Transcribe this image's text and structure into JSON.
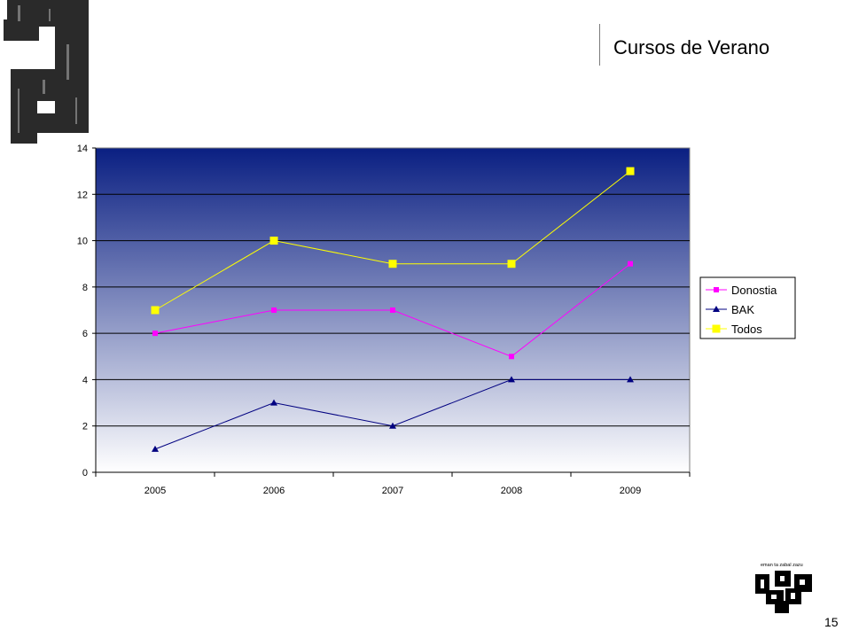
{
  "slide": {
    "title": "Cursos de Verano",
    "page_number": "15",
    "logo_motto": "eman ta zabal zazu"
  },
  "colors": {
    "donostia": "#ff00ff",
    "bak": "#000080",
    "todos": "#ffff00",
    "plot_top": "#0a1f82",
    "plot_bottom": "#ffffff"
  },
  "chart_data": {
    "type": "line",
    "categories": [
      "2005",
      "2006",
      "2007",
      "2008",
      "2009"
    ],
    "ylim": [
      0,
      14
    ],
    "yticks": [
      0,
      2,
      4,
      6,
      8,
      10,
      12,
      14
    ],
    "grid": true,
    "legend_position": "right",
    "series": [
      {
        "name": "Donostia",
        "values": [
          6,
          7,
          7,
          5,
          9
        ],
        "marker": "square"
      },
      {
        "name": "BAK",
        "values": [
          1,
          3,
          2,
          4,
          4
        ],
        "marker": "triangle"
      },
      {
        "name": "Todos",
        "values": [
          7,
          10,
          9,
          9,
          13
        ],
        "marker": "square-large"
      }
    ]
  }
}
